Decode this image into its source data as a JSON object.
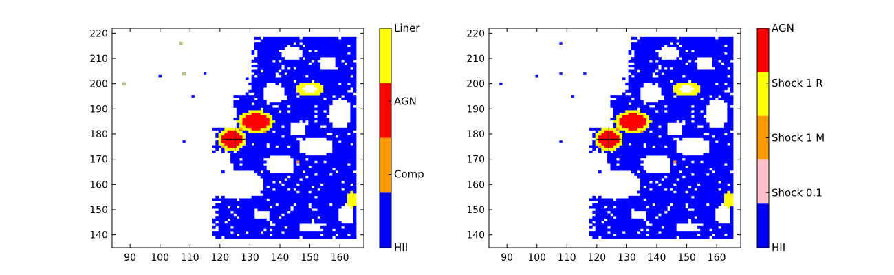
{
  "chart_data": [
    {
      "type": "heatmap",
      "panel": "left",
      "xlim": [
        84,
        168
      ],
      "ylim": [
        135,
        222
      ],
      "x_ticks": [
        90,
        100,
        110,
        120,
        130,
        140,
        150,
        160
      ],
      "y_ticks": [
        140,
        150,
        160,
        170,
        180,
        190,
        200,
        210,
        220
      ],
      "marker": {
        "x": 125,
        "y": 178,
        "symbol": "+"
      },
      "colorbar": {
        "categories": [
          {
            "label": "HII",
            "color": "#0000ff"
          },
          {
            "label": "Comp",
            "color": "#ff9900"
          },
          {
            "label": "AGN",
            "color": "#ff0000"
          },
          {
            "label": "Liner",
            "color": "#ffff00"
          }
        ]
      },
      "regions": [
        {
          "class": "HII",
          "color": "#0000ff",
          "x": [
            117,
            165
          ],
          "y": [
            139,
            218
          ],
          "note": "large blue region with white holes"
        },
        {
          "class": "AGN",
          "color": "#ff0000",
          "center": [
            124,
            178
          ],
          "note": "red core"
        },
        {
          "class": "AGN",
          "color": "#ff0000",
          "center": [
            132,
            186
          ]
        },
        {
          "class": "Liner",
          "color": "#ffff00",
          "center": [
            150,
            198
          ]
        },
        {
          "class": "Liner",
          "color": "#ffff00",
          "center": [
            164,
            154
          ]
        },
        {
          "class": "isolated",
          "color": "#c2c27a",
          "points": [
            [
              88,
              200
            ],
            [
              107,
              216
            ],
            [
              108,
              204
            ]
          ]
        },
        {
          "class": "isolated",
          "color": "#0000ff",
          "points": [
            [
              100,
              203
            ],
            [
              111,
              195
            ],
            [
              115,
              204
            ],
            [
              108,
              177
            ]
          ]
        }
      ]
    },
    {
      "type": "heatmap",
      "panel": "right",
      "xlim": [
        84,
        168
      ],
      "ylim": [
        135,
        222
      ],
      "x_ticks": [
        90,
        100,
        110,
        120,
        130,
        140,
        150,
        160
      ],
      "y_ticks": [
        140,
        150,
        160,
        170,
        180,
        190,
        200,
        210,
        220
      ],
      "marker": {
        "x": 124,
        "y": 178,
        "symbol": "+"
      },
      "colorbar": {
        "categories": [
          {
            "label": "HII",
            "color": "#0000ff"
          },
          {
            "label": "Shock 0.1",
            "color": "#ffc0cb"
          },
          {
            "label": "Shock 1 M",
            "color": "#ff9900"
          },
          {
            "label": "Shock 1 R",
            "color": "#ffff00"
          },
          {
            "label": "AGN",
            "color": "#ff0000"
          }
        ]
      },
      "regions": [
        {
          "class": "HII",
          "color": "#0000ff",
          "x": [
            117,
            165
          ],
          "y": [
            139,
            218
          ]
        },
        {
          "class": "AGN",
          "color": "#ff0000",
          "center": [
            124,
            178
          ]
        },
        {
          "class": "AGN",
          "color": "#ff0000",
          "center": [
            130,
            186
          ]
        },
        {
          "class": "Shock 1 R",
          "color": "#ffff00",
          "center": [
            150,
            198
          ]
        },
        {
          "class": "Shock 1 R",
          "color": "#ffff00",
          "center": [
            164,
            154
          ]
        },
        {
          "class": "isolated",
          "color": "#0000ff",
          "points": [
            [
              88,
              200
            ],
            [
              100,
              203
            ],
            [
              108,
              216
            ],
            [
              108,
              204
            ],
            [
              112,
              195
            ],
            [
              116,
              204
            ],
            [
              108,
              177
            ]
          ]
        }
      ]
    }
  ]
}
